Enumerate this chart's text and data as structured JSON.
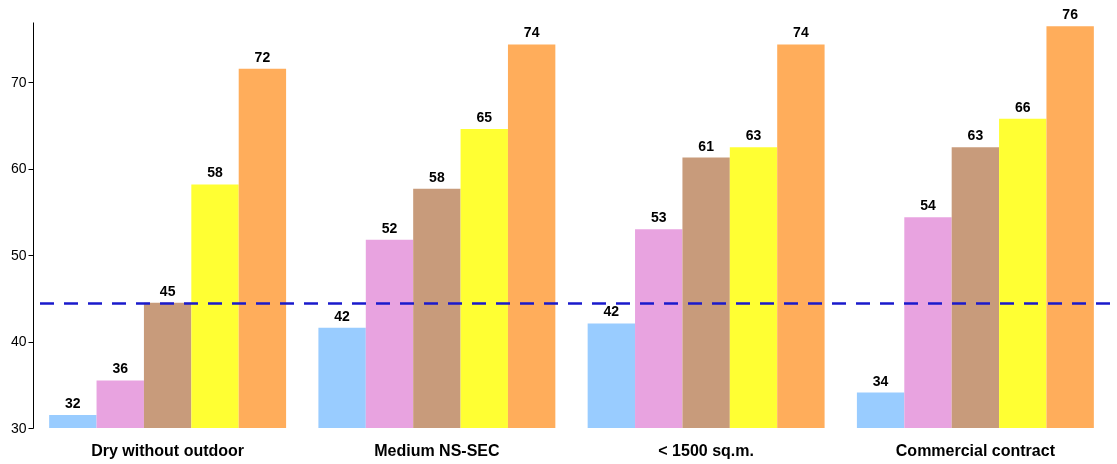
{
  "chart_data": {
    "type": "bar",
    "categories": [
      "Dry without outdoor",
      "Medium NS-SEC",
      "< 1500 sq.m.",
      "Commercial contract"
    ],
    "series": [
      {
        "color": "#99ccff",
        "values": [
          31.5,
          41.6,
          42.1,
          34.1
        ],
        "value_labels": [
          "32",
          "42",
          "42",
          "34"
        ]
      },
      {
        "color": "#e8a3e0",
        "values": [
          35.5,
          51.8,
          53.0,
          54.4
        ],
        "value_labels": [
          "36",
          "52",
          "53",
          "54"
        ]
      },
      {
        "color": "#c89b7b",
        "values": [
          44.5,
          57.7,
          61.3,
          62.5
        ],
        "value_labels": [
          "45",
          "58",
          "61",
          "63"
        ]
      },
      {
        "color": "#ffff33",
        "values": [
          58.2,
          64.6,
          62.5,
          65.8
        ],
        "value_labels": [
          "58",
          "65",
          "63",
          "66"
        ]
      },
      {
        "color": "#ffad5b",
        "values": [
          71.6,
          74.4,
          74.4,
          76.5
        ],
        "value_labels": [
          "72",
          "74",
          "74",
          "76"
        ]
      }
    ],
    "ylim": [
      30,
      77
    ],
    "yticks": [
      30,
      40,
      50,
      60,
      70
    ],
    "grid": false,
    "legend": false,
    "ref_lines": [
      {
        "axis": "y",
        "value": 44.4,
        "color": "#1a1acc",
        "line_style": "dashed"
      }
    ]
  }
}
